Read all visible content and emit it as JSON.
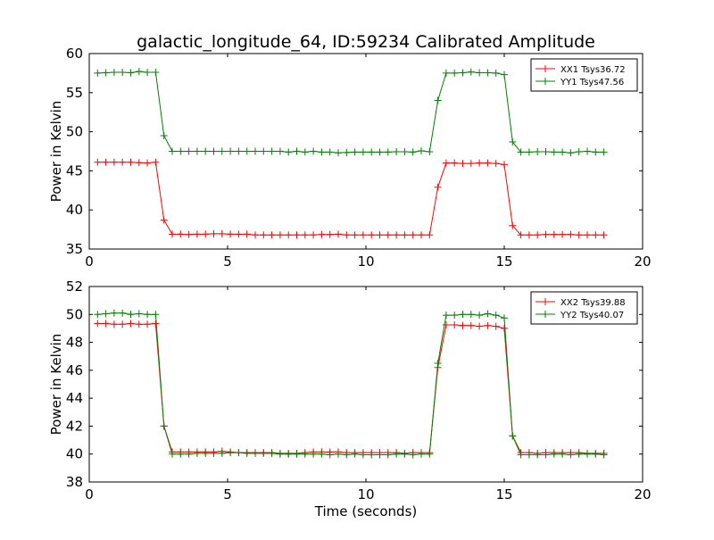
{
  "title": "galactic_longitude_64, ID:59234 Calibrated Amplitude",
  "colors": {
    "XX": "#ff0000",
    "YY": "#008000"
  },
  "chart_data": [
    {
      "type": "line",
      "panel": "top",
      "ylabel": "Power in Kelvin",
      "xlabel": "",
      "xlim": [
        0,
        20
      ],
      "ylim": [
        35,
        60
      ],
      "xticks": [
        0,
        5,
        10,
        15,
        20
      ],
      "yticks": [
        35,
        40,
        45,
        50,
        55,
        60
      ],
      "legend_position": "top-right",
      "x": [
        0.3,
        0.6,
        0.9,
        1.2,
        1.5,
        1.8,
        2.1,
        2.4,
        2.7,
        3.0,
        3.3,
        3.6,
        3.9,
        4.2,
        4.5,
        4.8,
        5.1,
        5.4,
        5.7,
        6.0,
        6.3,
        6.6,
        6.9,
        7.2,
        7.5,
        7.8,
        8.1,
        8.4,
        8.7,
        9.0,
        9.3,
        9.6,
        9.9,
        10.2,
        10.5,
        10.8,
        11.1,
        11.4,
        11.7,
        12.0,
        12.3,
        12.6,
        12.9,
        13.2,
        13.5,
        13.8,
        14.1,
        14.4,
        14.7,
        15.0,
        15.3,
        15.6,
        15.9,
        16.2,
        16.5,
        16.8,
        17.1,
        17.4,
        17.7,
        18.0,
        18.3,
        18.6
      ],
      "series": [
        {
          "name": "XX1 Tsys36.72",
          "color": "#ff0000",
          "values": [
            46.1,
            46.1,
            46.1,
            46.1,
            46.1,
            46.05,
            46.0,
            46.1,
            38.7,
            36.9,
            36.9,
            36.85,
            36.9,
            36.9,
            36.95,
            36.95,
            36.9,
            36.9,
            36.9,
            36.8,
            36.8,
            36.8,
            36.8,
            36.8,
            36.8,
            36.8,
            36.8,
            36.85,
            36.85,
            36.9,
            36.8,
            36.8,
            36.8,
            36.8,
            36.8,
            36.8,
            36.8,
            36.8,
            36.8,
            36.8,
            36.8,
            42.9,
            46.0,
            46.0,
            45.95,
            45.95,
            46.0,
            46.0,
            45.95,
            45.8,
            38.0,
            36.8,
            36.8,
            36.8,
            36.85,
            36.85,
            36.85,
            36.85,
            36.8,
            36.8,
            36.8,
            36.8
          ]
        },
        {
          "name": "YY1 Tsys47.56",
          "color": "#008000",
          "values": [
            57.5,
            57.55,
            57.6,
            57.6,
            57.55,
            57.7,
            57.6,
            57.6,
            49.5,
            47.5,
            47.5,
            47.5,
            47.5,
            47.5,
            47.5,
            47.5,
            47.5,
            47.5,
            47.5,
            47.5,
            47.5,
            47.5,
            47.5,
            47.4,
            47.5,
            47.4,
            47.5,
            47.4,
            47.4,
            47.3,
            47.35,
            47.4,
            47.4,
            47.4,
            47.4,
            47.4,
            47.45,
            47.45,
            47.4,
            47.55,
            47.45,
            54.0,
            57.5,
            57.5,
            57.55,
            57.65,
            57.55,
            57.55,
            57.5,
            57.3,
            48.7,
            47.4,
            47.4,
            47.45,
            47.45,
            47.4,
            47.4,
            47.3,
            47.45,
            47.5,
            47.4,
            47.4
          ]
        }
      ]
    },
    {
      "type": "line",
      "panel": "bottom",
      "ylabel": "Power in Kelvin",
      "xlabel": "Time (seconds)",
      "xlim": [
        0,
        20
      ],
      "ylim": [
        38,
        52
      ],
      "xticks": [
        0,
        5,
        10,
        15,
        20
      ],
      "yticks": [
        38,
        40,
        42,
        44,
        46,
        48,
        50,
        52
      ],
      "legend_position": "top-right",
      "x": [
        0.3,
        0.6,
        0.9,
        1.2,
        1.5,
        1.8,
        2.1,
        2.4,
        2.7,
        3.0,
        3.3,
        3.6,
        3.9,
        4.2,
        4.5,
        4.8,
        5.1,
        5.4,
        5.7,
        6.0,
        6.3,
        6.6,
        6.9,
        7.2,
        7.5,
        7.8,
        8.1,
        8.4,
        8.7,
        9.0,
        9.3,
        9.6,
        9.9,
        10.2,
        10.5,
        10.8,
        11.1,
        11.4,
        11.7,
        12.0,
        12.3,
        12.6,
        12.9,
        13.2,
        13.5,
        13.8,
        14.1,
        14.4,
        14.7,
        15.0,
        15.3,
        15.6,
        15.9,
        16.2,
        16.5,
        16.8,
        17.1,
        17.4,
        17.7,
        18.0,
        18.3,
        18.6
      ],
      "series": [
        {
          "name": "XX2 Tsys39.88",
          "color": "#ff0000",
          "values": [
            49.35,
            49.35,
            49.3,
            49.3,
            49.35,
            49.3,
            49.3,
            49.35,
            42.0,
            40.15,
            40.15,
            40.15,
            40.15,
            40.15,
            40.15,
            40.2,
            40.15,
            40.1,
            40.1,
            40.1,
            40.1,
            40.1,
            40.05,
            40.05,
            40.05,
            40.1,
            40.15,
            40.15,
            40.15,
            40.15,
            40.1,
            40.1,
            40.1,
            40.1,
            40.1,
            40.1,
            40.1,
            40.05,
            40.1,
            40.1,
            40.1,
            46.2,
            49.25,
            49.25,
            49.2,
            49.2,
            49.15,
            49.2,
            49.15,
            49.0,
            41.3,
            40.1,
            40.1,
            40.05,
            40.1,
            40.1,
            40.1,
            40.1,
            40.1,
            40.05,
            40.05,
            40.05
          ]
        },
        {
          "name": "YY2 Tsys40.07",
          "color": "#008000",
          "values": [
            50.0,
            50.05,
            50.1,
            50.1,
            50.0,
            50.05,
            50.0,
            50.0,
            42.0,
            40.0,
            40.0,
            40.0,
            40.05,
            40.05,
            40.05,
            40.05,
            40.1,
            40.1,
            40.05,
            40.05,
            40.05,
            40.05,
            40.0,
            40.0,
            40.0,
            40.0,
            40.0,
            40.0,
            39.95,
            40.0,
            39.95,
            40.0,
            39.95,
            39.95,
            39.95,
            39.95,
            40.0,
            40.0,
            39.95,
            40.0,
            40.0,
            46.5,
            49.95,
            49.95,
            50.0,
            50.0,
            49.95,
            50.05,
            49.95,
            49.75,
            41.3,
            39.95,
            39.95,
            39.95,
            39.95,
            40.0,
            40.0,
            39.95,
            40.0,
            40.0,
            40.0,
            39.95
          ]
        }
      ]
    }
  ]
}
